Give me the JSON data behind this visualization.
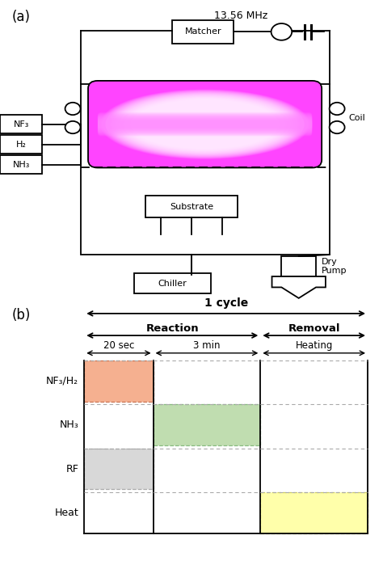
{
  "fig_width": 4.74,
  "fig_height": 7.25,
  "dpi": 100,
  "panel_a_label": "(a)",
  "panel_b_label": "(b)",
  "freq_label": "13.56 MHz",
  "matcher_label": "Matcher",
  "coil_label": "Coil",
  "substrate_label": "Substrate",
  "chiller_label": "Chiller",
  "dry_pump_label": "Dry\nPump",
  "gas_labels": [
    "NF₃",
    "H₂",
    "NH₃"
  ],
  "cycle_label": "1 cycle",
  "reaction_label": "Reaction",
  "removal_label": "Removal",
  "time_labels": [
    "20 sec",
    "3 min",
    "Heating"
  ],
  "row_labels": [
    "NF₃/H₂",
    "NH₃",
    "RF",
    "Heat"
  ],
  "nf3_fill": "#F5B090",
  "nf3_edge": "#CC7755",
  "nh3_fill": "#C0DDB0",
  "nh3_edge": "#88BB80",
  "rf_fill": "#D8D8D8",
  "rf_edge": "#AAAAAA",
  "heat_fill": "#FFFFAA",
  "heat_edge": "#CCCC66",
  "plasma_base": "#FF55FF",
  "plasma_bright": "#FF00FF"
}
